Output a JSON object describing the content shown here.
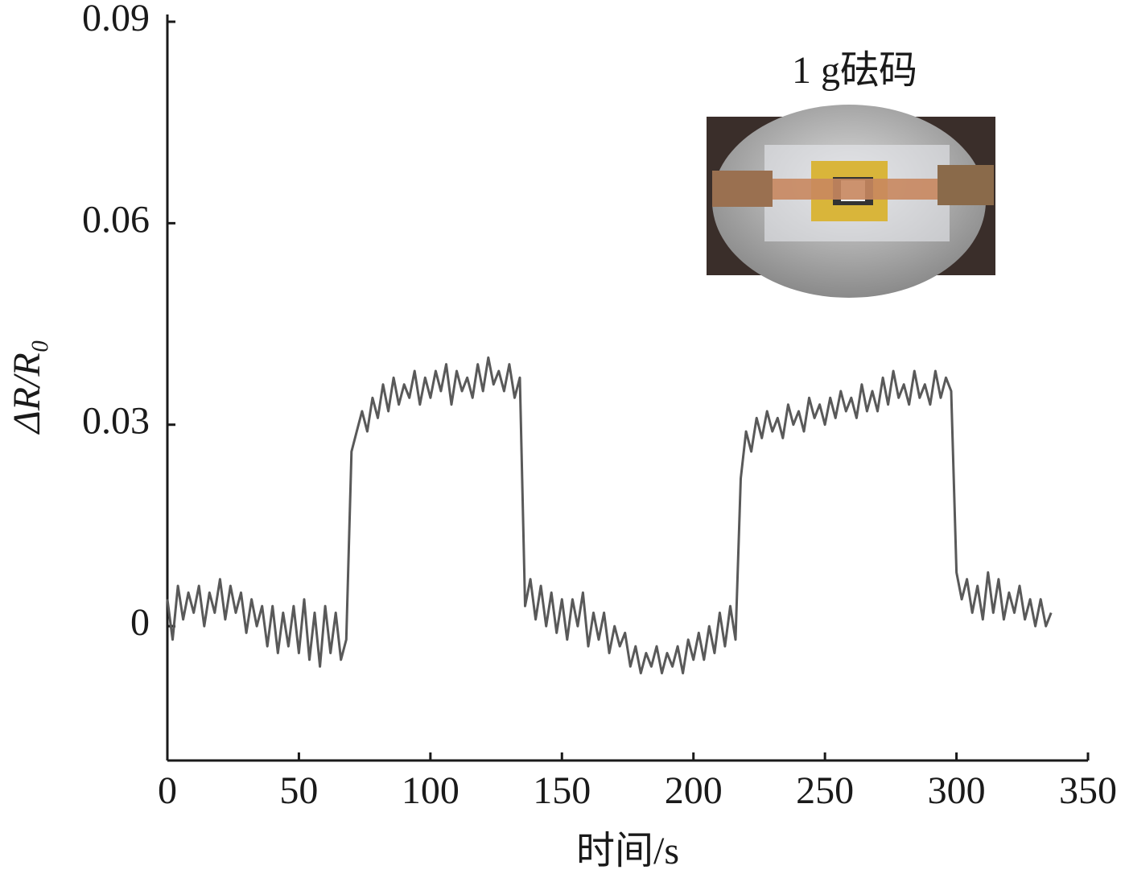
{
  "chart_data": {
    "type": "line",
    "xlabel": "时间/s",
    "ylabel": "ΔR/R₀",
    "annotation": "1 g砝码",
    "xlim": [
      0,
      350
    ],
    "xticks": [
      0,
      50,
      100,
      150,
      200,
      250,
      300,
      350
    ],
    "ylim": [
      -0.02,
      0.09
    ],
    "yticks": [
      0,
      0.03,
      0.06,
      0.09
    ],
    "color": "#595959",
    "x": [
      0,
      2,
      4,
      6,
      8,
      10,
      12,
      14,
      16,
      18,
      20,
      22,
      24,
      26,
      28,
      30,
      32,
      34,
      36,
      38,
      40,
      42,
      44,
      46,
      48,
      50,
      52,
      54,
      56,
      58,
      60,
      62,
      64,
      66,
      68,
      70,
      72,
      74,
      76,
      78,
      80,
      82,
      84,
      86,
      88,
      90,
      92,
      94,
      96,
      98,
      100,
      102,
      104,
      106,
      108,
      110,
      112,
      114,
      116,
      118,
      120,
      122,
      124,
      126,
      128,
      130,
      132,
      134,
      136,
      138,
      140,
      142,
      144,
      146,
      148,
      150,
      152,
      154,
      156,
      158,
      160,
      162,
      164,
      166,
      168,
      170,
      172,
      174,
      176,
      178,
      180,
      182,
      184,
      186,
      188,
      190,
      192,
      194,
      196,
      198,
      200,
      202,
      204,
      206,
      208,
      210,
      212,
      214,
      216,
      218,
      220,
      222,
      224,
      226,
      228,
      230,
      232,
      234,
      236,
      238,
      240,
      242,
      244,
      246,
      248,
      250,
      252,
      254,
      256,
      258,
      260,
      262,
      264,
      266,
      268,
      270,
      272,
      274,
      276,
      278,
      280,
      282,
      284,
      286,
      288,
      290,
      292,
      294,
      296,
      298,
      300,
      302,
      304,
      306,
      308,
      310,
      312,
      314,
      316,
      318,
      320,
      322,
      324,
      326,
      328,
      330,
      332,
      334,
      336
    ],
    "values": [
      0.004,
      -0.002,
      0.006,
      0.001,
      0.005,
      0.002,
      0.006,
      0.0,
      0.005,
      0.002,
      0.007,
      0.001,
      0.006,
      0.002,
      0.005,
      -0.001,
      0.004,
      0.0,
      0.003,
      -0.003,
      0.003,
      -0.004,
      0.002,
      -0.003,
      0.003,
      -0.004,
      0.004,
      -0.005,
      0.002,
      -0.006,
      0.003,
      -0.004,
      0.002,
      -0.005,
      -0.002,
      0.026,
      0.029,
      0.032,
      0.029,
      0.034,
      0.031,
      0.036,
      0.032,
      0.037,
      0.033,
      0.036,
      0.034,
      0.038,
      0.033,
      0.037,
      0.034,
      0.038,
      0.035,
      0.039,
      0.033,
      0.038,
      0.035,
      0.037,
      0.034,
      0.039,
      0.035,
      0.04,
      0.036,
      0.038,
      0.035,
      0.039,
      0.034,
      0.037,
      0.003,
      0.007,
      0.001,
      0.006,
      0.0,
      0.005,
      -0.001,
      0.004,
      -0.002,
      0.004,
      0.0,
      0.005,
      -0.003,
      0.002,
      -0.002,
      0.002,
      -0.004,
      0.0,
      -0.003,
      -0.001,
      -0.006,
      -0.003,
      -0.007,
      -0.004,
      -0.006,
      -0.003,
      -0.007,
      -0.004,
      -0.006,
      -0.003,
      -0.007,
      -0.002,
      -0.005,
      -0.001,
      -0.005,
      0.0,
      -0.004,
      0.002,
      -0.003,
      0.003,
      -0.002,
      0.022,
      0.029,
      0.026,
      0.031,
      0.028,
      0.032,
      0.029,
      0.031,
      0.028,
      0.033,
      0.03,
      0.032,
      0.029,
      0.034,
      0.031,
      0.033,
      0.03,
      0.034,
      0.031,
      0.035,
      0.032,
      0.034,
      0.031,
      0.036,
      0.032,
      0.035,
      0.032,
      0.037,
      0.033,
      0.038,
      0.034,
      0.036,
      0.033,
      0.038,
      0.034,
      0.036,
      0.033,
      0.038,
      0.034,
      0.037,
      0.035,
      0.008,
      0.004,
      0.007,
      0.002,
      0.006,
      0.001,
      0.008,
      0.002,
      0.007,
      0.001,
      0.005,
      0.002,
      0.006,
      0.001,
      0.004,
      0.0,
      0.004,
      0.0,
      0.002
    ]
  }
}
